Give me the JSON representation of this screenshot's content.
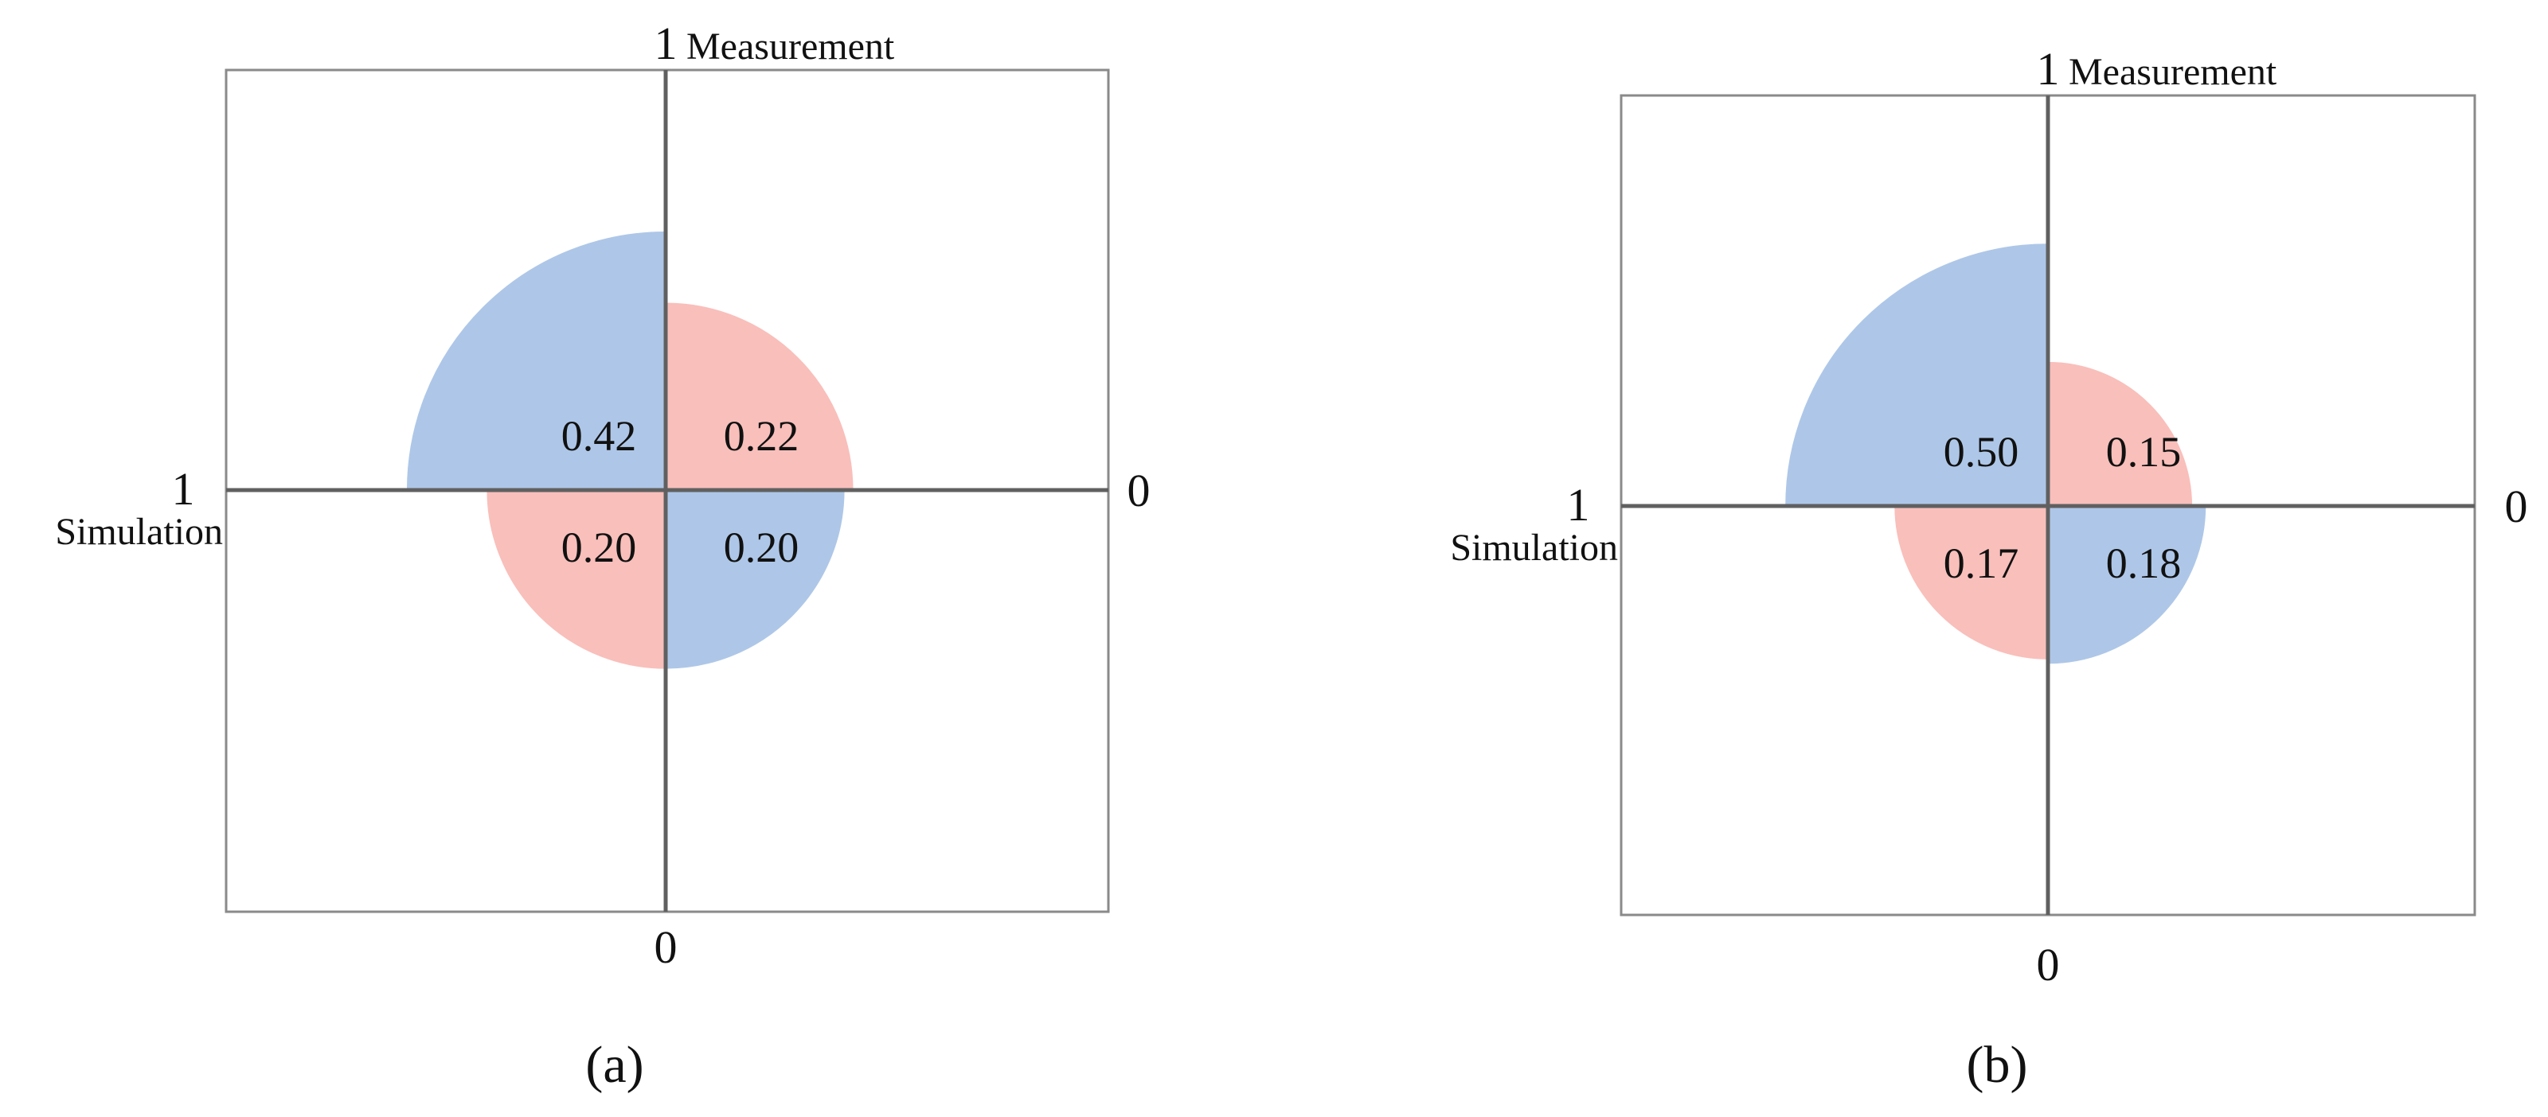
{
  "chart_data": [
    {
      "type": "four-quadrant fourfold chart",
      "panel_label": "(a)",
      "vertical_axis": {
        "label": "Measurement",
        "max_label": "1",
        "min_label": "0",
        "range": [
          0,
          1
        ]
      },
      "horizontal_axis": {
        "label": "Simulation",
        "max_label": "1",
        "min_label": "0",
        "range": [
          0,
          1
        ]
      },
      "quadrants": [
        {
          "quadrant": "top-left",
          "value": 0.42,
          "label": "0.42",
          "color": "#aec7e8"
        },
        {
          "quadrant": "top-right",
          "value": 0.22,
          "label": "0.22",
          "color": "#f9bfbb"
        },
        {
          "quadrant": "bottom-left",
          "value": 0.2,
          "label": "0.20",
          "color": "#f9bfbb"
        },
        {
          "quadrant": "bottom-right",
          "value": 0.2,
          "label": "0.20",
          "color": "#aec7e8"
        }
      ]
    },
    {
      "type": "four-quadrant fourfold chart",
      "panel_label": "(b)",
      "vertical_axis": {
        "label": "Measurement",
        "max_label": "1",
        "min_label": "0",
        "range": [
          0,
          1
        ]
      },
      "horizontal_axis": {
        "label": "Simulation",
        "max_label": "1",
        "min_label": "0",
        "range": [
          0,
          1
        ]
      },
      "quadrants": [
        {
          "quadrant": "top-left",
          "value": 0.5,
          "label": "0.50",
          "color": "#aec7e8"
        },
        {
          "quadrant": "top-right",
          "value": 0.15,
          "label": "0.15",
          "color": "#f9bfbb"
        },
        {
          "quadrant": "bottom-left",
          "value": 0.17,
          "label": "0.17",
          "color": "#f9bfbb"
        },
        {
          "quadrant": "bottom-right",
          "value": 0.18,
          "label": "0.18",
          "color": "#aec7e8"
        }
      ]
    }
  ]
}
